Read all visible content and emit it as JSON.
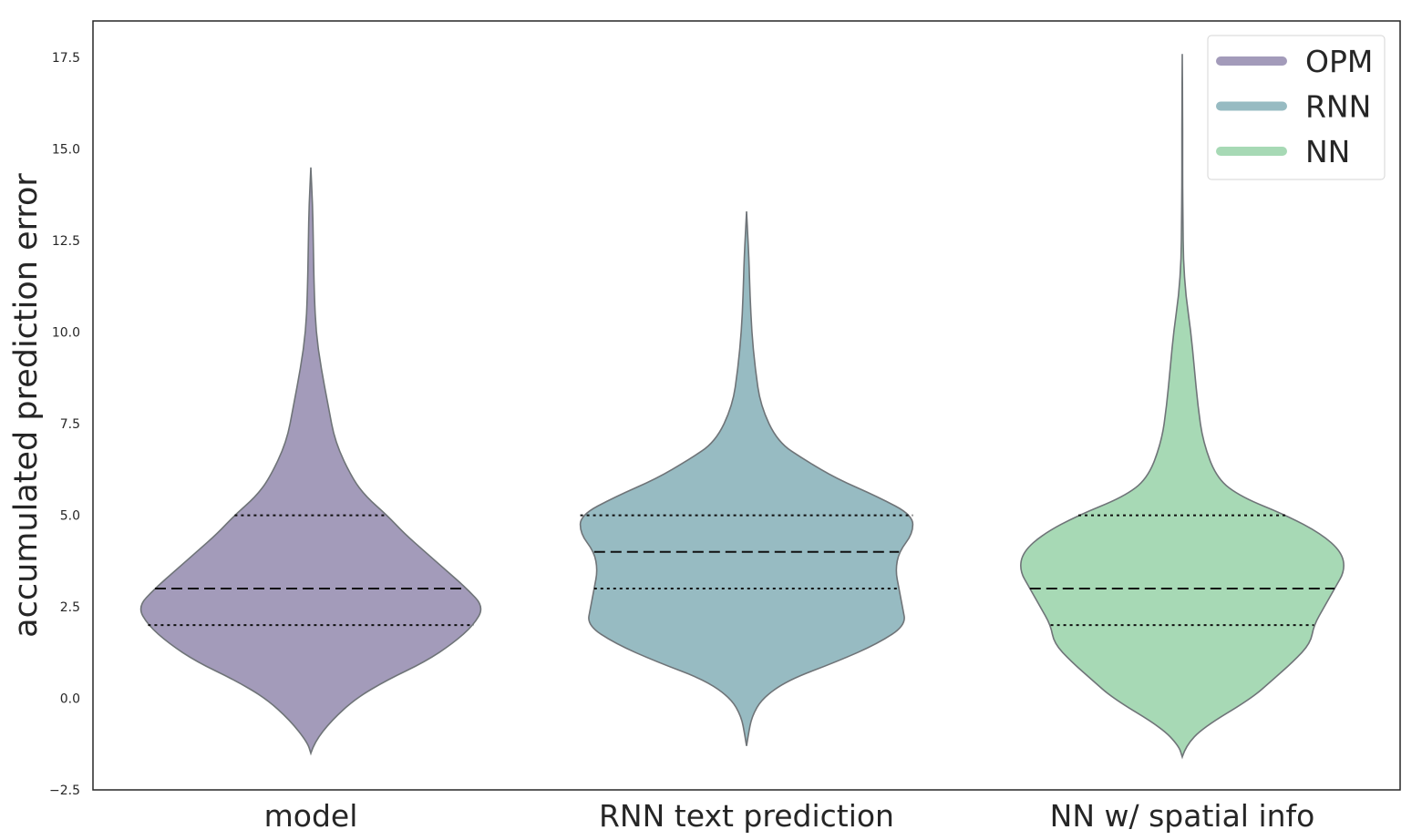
{
  "chart_data": {
    "type": "violin",
    "title": "",
    "xlabel": "",
    "ylabel": "accumulated prediction error",
    "ylim": [
      -2.5,
      18.5
    ],
    "yticks": [
      -2.5,
      0.0,
      2.5,
      5.0,
      7.5,
      10.0,
      12.5,
      15.0,
      17.5
    ],
    "ytick_labels": [
      "−2.5",
      "0.0",
      "2.5",
      "5.0",
      "7.5",
      "10.0",
      "12.5",
      "15.0",
      "17.5"
    ],
    "categories": [
      "model",
      "RNN text prediction",
      "NN w/ spatial info"
    ],
    "grid": false,
    "legend_position": "top-right",
    "series": [
      {
        "name": "OPM",
        "category": "model",
        "color": "#a39bba",
        "min": -1.5,
        "max": 14.5,
        "quartiles": [
          2.0,
          3.0,
          5.0
        ],
        "density": [
          [
            -1.5,
            0.0
          ],
          [
            -1.2,
            0.01
          ],
          [
            -0.6,
            0.06
          ],
          [
            0.0,
            0.13
          ],
          [
            0.5,
            0.22
          ],
          [
            1.0,
            0.33
          ],
          [
            1.5,
            0.41
          ],
          [
            2.0,
            0.47
          ],
          [
            2.5,
            0.5
          ],
          [
            3.0,
            0.45
          ],
          [
            3.5,
            0.39
          ],
          [
            4.0,
            0.33
          ],
          [
            4.5,
            0.27
          ],
          [
            5.0,
            0.22
          ],
          [
            5.5,
            0.16
          ],
          [
            6.0,
            0.12
          ],
          [
            7.0,
            0.07
          ],
          [
            8.0,
            0.05
          ],
          [
            9.0,
            0.03
          ],
          [
            10.0,
            0.015
          ],
          [
            11.0,
            0.01
          ],
          [
            12.5,
            0.007
          ],
          [
            13.5,
            0.005
          ],
          [
            14.5,
            0.0
          ]
        ]
      },
      {
        "name": "RNN",
        "category": "RNN text prediction",
        "color": "#97bbc2",
        "min": -1.3,
        "max": 13.3,
        "quartiles": [
          3.0,
          4.0,
          5.0
        ],
        "density": [
          [
            -1.3,
            0.0
          ],
          [
            -1.0,
            0.005
          ],
          [
            -0.5,
            0.015
          ],
          [
            0.0,
            0.045
          ],
          [
            0.5,
            0.12
          ],
          [
            1.0,
            0.26
          ],
          [
            1.5,
            0.38
          ],
          [
            2.0,
            0.46
          ],
          [
            2.5,
            0.45
          ],
          [
            3.0,
            0.44
          ],
          [
            3.5,
            0.43
          ],
          [
            4.0,
            0.44
          ],
          [
            4.5,
            0.48
          ],
          [
            5.0,
            0.48
          ],
          [
            5.5,
            0.38
          ],
          [
            6.0,
            0.26
          ],
          [
            6.5,
            0.17
          ],
          [
            7.0,
            0.09
          ],
          [
            8.0,
            0.04
          ],
          [
            9.0,
            0.025
          ],
          [
            10.0,
            0.015
          ],
          [
            11.0,
            0.01
          ],
          [
            12.0,
            0.007
          ],
          [
            13.3,
            0.0
          ]
        ]
      },
      {
        "name": "NN",
        "category": "NN w/ spatial info",
        "color": "#a7d9b5",
        "min": -1.6,
        "max": 17.6,
        "quartiles": [
          2.0,
          3.0,
          5.0
        ],
        "density": [
          [
            -1.6,
            0.0
          ],
          [
            -1.3,
            0.01
          ],
          [
            -0.8,
            0.06
          ],
          [
            0.0,
            0.2
          ],
          [
            0.5,
            0.26
          ],
          [
            1.0,
            0.32
          ],
          [
            1.5,
            0.37
          ],
          [
            2.0,
            0.38
          ],
          [
            2.5,
            0.41
          ],
          [
            3.0,
            0.44
          ],
          [
            3.5,
            0.47
          ],
          [
            4.0,
            0.46
          ],
          [
            4.5,
            0.4
          ],
          [
            5.0,
            0.3
          ],
          [
            5.5,
            0.17
          ],
          [
            6.0,
            0.1
          ],
          [
            7.0,
            0.06
          ],
          [
            8.0,
            0.045
          ],
          [
            9.0,
            0.035
          ],
          [
            10.0,
            0.025
          ],
          [
            11.0,
            0.01
          ],
          [
            12.0,
            0.003
          ],
          [
            13.0,
            0.002
          ],
          [
            14.0,
            0.001
          ],
          [
            15.0,
            0.001
          ],
          [
            16.0,
            0.001
          ],
          [
            17.6,
            0.0
          ]
        ]
      }
    ]
  }
}
